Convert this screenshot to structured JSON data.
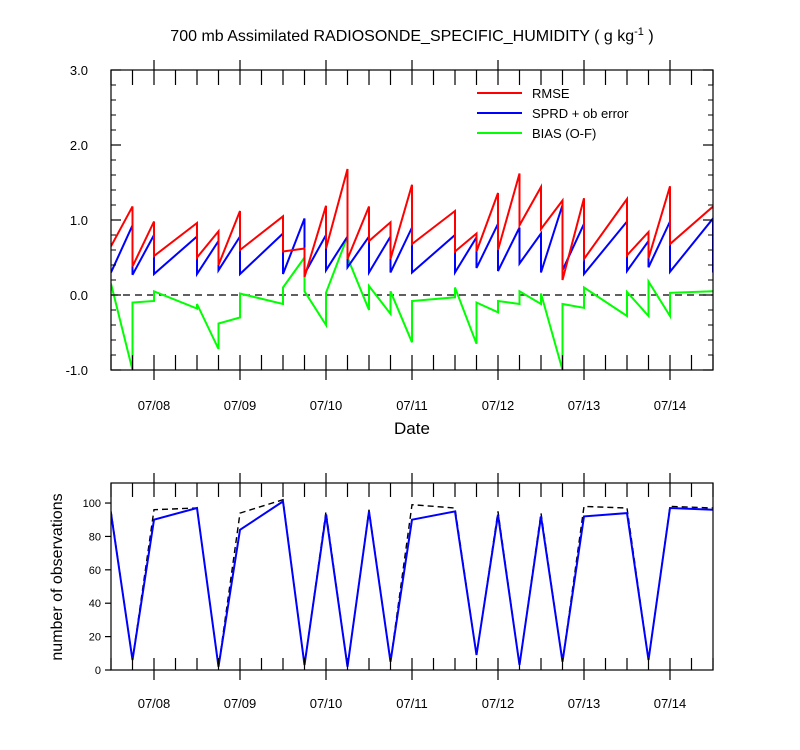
{
  "chart_data": [
    {
      "type": "line",
      "title": "700 mb Assimilated RADIOSONDE_SPECIFIC_HUMIDITY ( g kg",
      "title_exponent": "-1",
      "title_suffix": " )",
      "xlabel": "Date",
      "ylabel": "",
      "x_unit": "day",
      "xlim": [
        7.5,
        14.5
      ],
      "ylim": [
        -1.0,
        3.0
      ],
      "yticks": [
        -1.0,
        0.0,
        1.0,
        2.0,
        3.0
      ],
      "ytick_labels": [
        "-1.0",
        "0.0",
        "1.0",
        "2.0",
        "3.0"
      ],
      "xticks": [
        8,
        9,
        10,
        11,
        12,
        13,
        14
      ],
      "xtick_labels": [
        "07/08",
        "07/09",
        "07/10",
        "07/11",
        "07/12",
        "07/13",
        "07/14"
      ],
      "zero_line": 0.0,
      "legend_position": "top-right",
      "series": [
        {
          "name": "RMSE",
          "color": "#ff0000",
          "points": [
            [
              7.5,
              0.65
            ],
            [
              7.75,
              1.18
            ],
            [
              7.75,
              0.38
            ],
            [
              8.0,
              0.98
            ],
            [
              8.0,
              0.52
            ],
            [
              8.5,
              0.96
            ],
            [
              8.5,
              0.5
            ],
            [
              8.75,
              0.85
            ],
            [
              8.75,
              0.4
            ],
            [
              9.0,
              1.12
            ],
            [
              9.0,
              0.6
            ],
            [
              9.5,
              1.05
            ],
            [
              9.5,
              0.58
            ],
            [
              9.75,
              0.62
            ],
            [
              9.75,
              0.24
            ],
            [
              10.0,
              1.19
            ],
            [
              10.0,
              0.62
            ],
            [
              10.25,
              1.68
            ],
            [
              10.25,
              0.48
            ],
            [
              10.5,
              1.18
            ],
            [
              10.5,
              0.72
            ],
            [
              10.75,
              0.97
            ],
            [
              10.75,
              0.48
            ],
            [
              11.0,
              1.47
            ],
            [
              11.0,
              0.68
            ],
            [
              11.5,
              1.12
            ],
            [
              11.5,
              0.58
            ],
            [
              11.75,
              0.82
            ],
            [
              11.75,
              0.58
            ],
            [
              12.0,
              1.36
            ],
            [
              12.0,
              0.6
            ],
            [
              12.25,
              1.62
            ],
            [
              12.25,
              0.93
            ],
            [
              12.5,
              1.44
            ],
            [
              12.5,
              0.88
            ],
            [
              12.75,
              1.26
            ],
            [
              12.75,
              0.2
            ],
            [
              13.0,
              1.29
            ],
            [
              13.0,
              0.48
            ],
            [
              13.5,
              1.28
            ],
            [
              13.5,
              0.53
            ],
            [
              13.75,
              0.84
            ],
            [
              13.75,
              0.49
            ],
            [
              14.0,
              1.45
            ],
            [
              14.0,
              0.68
            ],
            [
              14.5,
              1.18
            ]
          ]
        },
        {
          "name": "SPRD + ob error",
          "color": "#0000ff",
          "points": [
            [
              7.5,
              0.3
            ],
            [
              7.75,
              0.93
            ],
            [
              7.75,
              0.27
            ],
            [
              8.0,
              0.8
            ],
            [
              8.0,
              0.28
            ],
            [
              8.5,
              0.78
            ],
            [
              8.5,
              0.28
            ],
            [
              8.75,
              0.72
            ],
            [
              8.75,
              0.33
            ],
            [
              9.0,
              0.78
            ],
            [
              9.0,
              0.28
            ],
            [
              9.5,
              0.82
            ],
            [
              9.5,
              0.28
            ],
            [
              9.75,
              1.02
            ],
            [
              9.75,
              0.28
            ],
            [
              10.0,
              0.8
            ],
            [
              10.0,
              0.33
            ],
            [
              10.25,
              0.78
            ],
            [
              10.25,
              0.37
            ],
            [
              10.5,
              0.78
            ],
            [
              10.5,
              0.3
            ],
            [
              10.75,
              0.78
            ],
            [
              10.75,
              0.3
            ],
            [
              11.0,
              0.9
            ],
            [
              11.0,
              0.3
            ],
            [
              11.5,
              0.8
            ],
            [
              11.5,
              0.3
            ],
            [
              11.75,
              0.77
            ],
            [
              11.75,
              0.36
            ],
            [
              12.0,
              0.95
            ],
            [
              12.0,
              0.32
            ],
            [
              12.25,
              0.9
            ],
            [
              12.25,
              0.42
            ],
            [
              12.5,
              0.82
            ],
            [
              12.5,
              0.3
            ],
            [
              12.75,
              1.2
            ],
            [
              12.75,
              0.33
            ],
            [
              13.0,
              0.95
            ],
            [
              13.0,
              0.28
            ],
            [
              13.5,
              0.98
            ],
            [
              13.5,
              0.32
            ],
            [
              13.75,
              0.72
            ],
            [
              13.75,
              0.37
            ],
            [
              14.0,
              0.98
            ],
            [
              14.0,
              0.31
            ],
            [
              14.5,
              1.02
            ],
            [
              14.5,
              0.3
            ]
          ]
        },
        {
          "name": "BIAS (O-F)",
          "color": "#00ff00",
          "points": [
            [
              7.5,
              0.15
            ],
            [
              7.75,
              -1.0
            ],
            [
              7.75,
              -0.1
            ],
            [
              8.0,
              -0.08
            ],
            [
              8.0,
              0.05
            ],
            [
              8.5,
              -0.18
            ],
            [
              8.5,
              -0.12
            ],
            [
              8.75,
              -0.72
            ],
            [
              8.75,
              -0.38
            ],
            [
              9.0,
              -0.3
            ],
            [
              9.0,
              0.02
            ],
            [
              9.5,
              -0.12
            ],
            [
              9.5,
              0.1
            ],
            [
              9.75,
              0.5
            ],
            [
              9.75,
              0.05
            ],
            [
              10.0,
              -0.4
            ],
            [
              10.0,
              0.03
            ],
            [
              10.25,
              0.78
            ],
            [
              10.25,
              0.5
            ],
            [
              10.5,
              -0.2
            ],
            [
              10.5,
              0.12
            ],
            [
              10.75,
              -0.25
            ],
            [
              10.75,
              0.05
            ],
            [
              11.0,
              -0.63
            ],
            [
              11.0,
              -0.08
            ],
            [
              11.5,
              -0.03
            ],
            [
              11.5,
              0.1
            ],
            [
              11.75,
              -0.65
            ],
            [
              11.75,
              -0.1
            ],
            [
              12.0,
              -0.23
            ],
            [
              12.0,
              -0.08
            ],
            [
              12.25,
              -0.12
            ],
            [
              12.25,
              0.05
            ],
            [
              12.5,
              -0.12
            ],
            [
              12.5,
              0.02
            ],
            [
              12.75,
              -1.0
            ],
            [
              12.75,
              -0.12
            ],
            [
              13.0,
              -0.17
            ],
            [
              13.0,
              0.1
            ],
            [
              13.5,
              -0.28
            ],
            [
              13.5,
              0.04
            ],
            [
              13.75,
              -0.28
            ],
            [
              13.75,
              0.18
            ],
            [
              14.0,
              -0.28
            ],
            [
              14.0,
              0.03
            ],
            [
              14.5,
              0.05
            ]
          ]
        }
      ]
    },
    {
      "type": "line",
      "ylabel": "number of observations",
      "xlabel": "",
      "x_unit": "day",
      "xlim": [
        7.5,
        14.5
      ],
      "ylim": [
        0,
        112
      ],
      "yticks": [
        0,
        20,
        40,
        60,
        80,
        100
      ],
      "ytick_labels": [
        "0",
        "20",
        "40",
        "60",
        "80",
        "100"
      ],
      "xticks": [
        8,
        9,
        10,
        11,
        12,
        13,
        14
      ],
      "xtick_labels": [
        "07/08",
        "07/09",
        "07/10",
        "07/11",
        "07/12",
        "07/13",
        "07/14"
      ],
      "series": [
        {
          "color": "#0000ff",
          "style": "solid",
          "points": [
            [
              7.5,
              94
            ],
            [
              7.75,
              6
            ],
            [
              8.0,
              90
            ],
            [
              8.5,
              97
            ],
            [
              8.75,
              2
            ],
            [
              9.0,
              84
            ],
            [
              9.5,
              101
            ],
            [
              9.75,
              3
            ],
            [
              10.0,
              93
            ],
            [
              10.25,
              2
            ],
            [
              10.5,
              95
            ],
            [
              10.75,
              5
            ],
            [
              11.0,
              90
            ],
            [
              11.5,
              95
            ],
            [
              11.75,
              9
            ],
            [
              12.0,
              93
            ],
            [
              12.25,
              3
            ],
            [
              12.5,
              92
            ],
            [
              12.75,
              5
            ],
            [
              13.0,
              92
            ],
            [
              13.5,
              94
            ],
            [
              13.75,
              6
            ],
            [
              14.0,
              97
            ],
            [
              14.5,
              96
            ]
          ]
        },
        {
          "color": "#000000",
          "style": "dashed",
          "points": [
            [
              7.5,
              95
            ],
            [
              7.75,
              6
            ],
            [
              8.0,
              96
            ],
            [
              8.5,
              97
            ],
            [
              8.75,
              2
            ],
            [
              9.0,
              94
            ],
            [
              9.5,
              102
            ],
            [
              9.75,
              3
            ],
            [
              10.0,
              95
            ],
            [
              10.25,
              2
            ],
            [
              10.5,
              96
            ],
            [
              10.75,
              5
            ],
            [
              11.0,
              99
            ],
            [
              11.5,
              97
            ],
            [
              11.75,
              9
            ],
            [
              12.0,
              95
            ],
            [
              12.25,
              3
            ],
            [
              12.5,
              94
            ],
            [
              12.75,
              5
            ],
            [
              13.0,
              98
            ],
            [
              13.5,
              97
            ],
            [
              13.75,
              6
            ],
            [
              14.0,
              98
            ],
            [
              14.5,
              97
            ]
          ]
        }
      ]
    }
  ]
}
